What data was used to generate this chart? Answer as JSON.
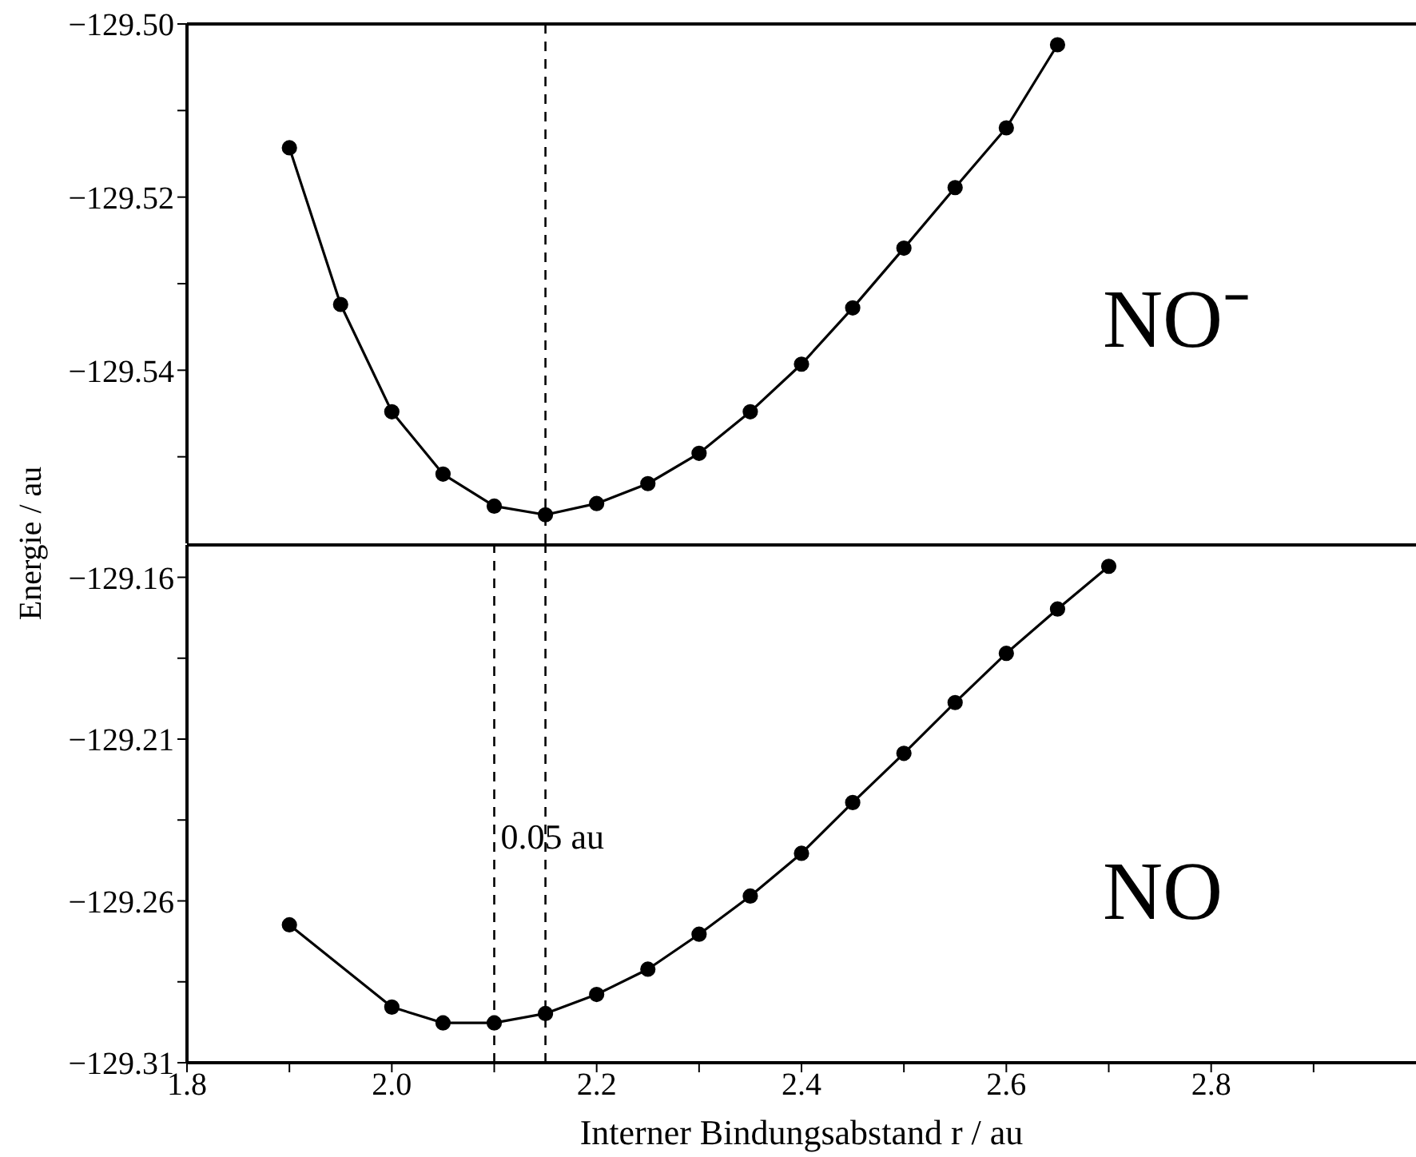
{
  "chart_data": [
    {
      "type": "line",
      "ylabel": "Energie / au",
      "x": [
        1.9,
        1.95,
        2.0,
        2.05,
        2.1,
        2.15,
        2.2,
        2.25,
        2.3,
        2.35,
        2.4,
        2.45,
        2.5,
        2.55,
        2.6,
        2.65
      ],
      "series": [
        {
          "color": "#000000",
          "values": [
            -129.5143,
            -129.5324,
            -129.5448,
            -129.552,
            -129.5557,
            -129.5567,
            -129.5554,
            -129.5531,
            -129.5496,
            -129.5448,
            -129.5393,
            -129.5328,
            -129.5259,
            -129.5189,
            -129.512,
            -129.5024
          ]
        }
      ],
      "xlim": [
        1.8,
        3.0
      ],
      "ylim": [
        -129.56,
        -129.5
      ],
      "yticks": [
        {
          "value": -129.5,
          "label": "−129.50"
        },
        {
          "value": -129.51,
          "label": null
        },
        {
          "value": -129.52,
          "label": "−129.52"
        },
        {
          "value": -129.53,
          "label": null
        },
        {
          "value": -129.54,
          "label": "−129.54"
        },
        {
          "value": -129.55,
          "label": null
        }
      ],
      "tick_labels": "y",
      "marker": "circle",
      "line_style": "solid",
      "ref_lines": [
        {
          "axis": "x",
          "value": 2.15,
          "line_style": "dashed"
        }
      ],
      "annotations": [
        "NO⁻"
      ]
    },
    {
      "type": "line",
      "xlabel": "Interner Bindungsabstand r / au",
      "x": [
        1.9,
        2.0,
        2.05,
        2.1,
        2.15,
        2.2,
        2.25,
        2.3,
        2.35,
        2.4,
        2.45,
        2.5,
        2.55,
        2.6,
        2.65,
        2.7
      ],
      "series": [
        {
          "color": "#000000",
          "values": [
            -129.2674,
            -129.2928,
            -129.2977,
            -129.2977,
            -129.2948,
            -129.2889,
            -129.2811,
            -129.2703,
            -129.2585,
            -129.2453,
            -129.2296,
            -129.2144,
            -129.1987,
            -129.1835,
            -129.1698,
            -129.1566
          ]
        }
      ],
      "xlim": [
        1.8,
        3.0
      ],
      "xticks": [
        {
          "value": 1.8,
          "label": "1.8"
        },
        {
          "value": 1.9,
          "label": null
        },
        {
          "value": 2.0,
          "label": "2.0"
        },
        {
          "value": 2.1,
          "label": null
        },
        {
          "value": 2.2,
          "label": "2.2"
        },
        {
          "value": 2.3,
          "label": null
        },
        {
          "value": 2.4,
          "label": "2.4"
        },
        {
          "value": 2.5,
          "label": null
        },
        {
          "value": 2.6,
          "label": "2.6"
        },
        {
          "value": 2.7,
          "label": null
        },
        {
          "value": 2.8,
          "label": "2.8"
        },
        {
          "value": 2.9,
          "label": null
        }
      ],
      "ylim": [
        -129.31,
        -129.15
      ],
      "yticks": [
        {
          "value": -129.31,
          "label": "−129.31"
        },
        {
          "value": -129.285,
          "label": null
        },
        {
          "value": -129.26,
          "label": "−129.26"
        },
        {
          "value": -129.235,
          "label": null
        },
        {
          "value": -129.21,
          "label": "−129.21"
        },
        {
          "value": -129.185,
          "label": null
        },
        {
          "value": -129.16,
          "label": "−129.16"
        }
      ],
      "marker": "circle",
      "line_style": "solid",
      "ref_lines": [
        {
          "axis": "x",
          "value": 2.15,
          "line_style": "dashed"
        },
        {
          "axis": "x",
          "value": 2.1,
          "line_style": "dashed"
        }
      ],
      "annotations": [
        {
          "text": "0.05 au",
          "x": 2.1,
          "y": -129.24
        },
        "NO"
      ]
    }
  ]
}
